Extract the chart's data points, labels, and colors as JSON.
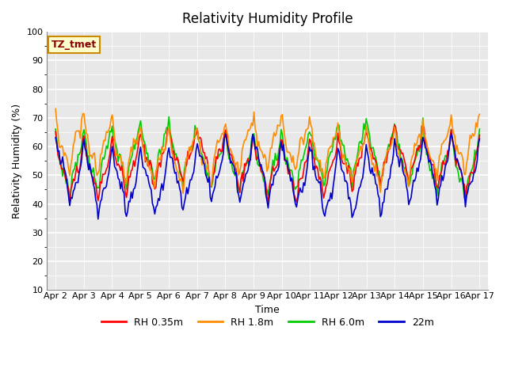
{
  "title": "Relativity Humidity Profile",
  "xlabel": "Time",
  "ylabel": "Relativity Humidity (%)",
  "ylim": [
    10,
    100
  ],
  "yticks": [
    10,
    20,
    30,
    40,
    50,
    60,
    70,
    80,
    90,
    100
  ],
  "colors": {
    "RH 0.35m": "#ff0000",
    "RH 1.8m": "#ff8c00",
    "RH 6.0m": "#00cc00",
    "22m": "#0000cc"
  },
  "legend_labels": [
    "RH 0.35m",
    "RH 1.8m",
    "RH 6.0m",
    "22m"
  ],
  "annotation": "TZ_tmet",
  "background_color": "#e8e8e8",
  "axes_background": "#e8e8e8",
  "n_days": 15,
  "start_day": 2,
  "x_labels": [
    "Apr 2",
    "Apr 3",
    "Apr 4",
    "Apr 5",
    "Apr 6",
    "Apr 7",
    "Apr 8",
    "Apr 9",
    "Apr 10",
    "Apr 11",
    "Apr 12",
    "Apr 13",
    "Apr 14",
    "Apr 15",
    "Apr 16",
    "Apr 17"
  ]
}
